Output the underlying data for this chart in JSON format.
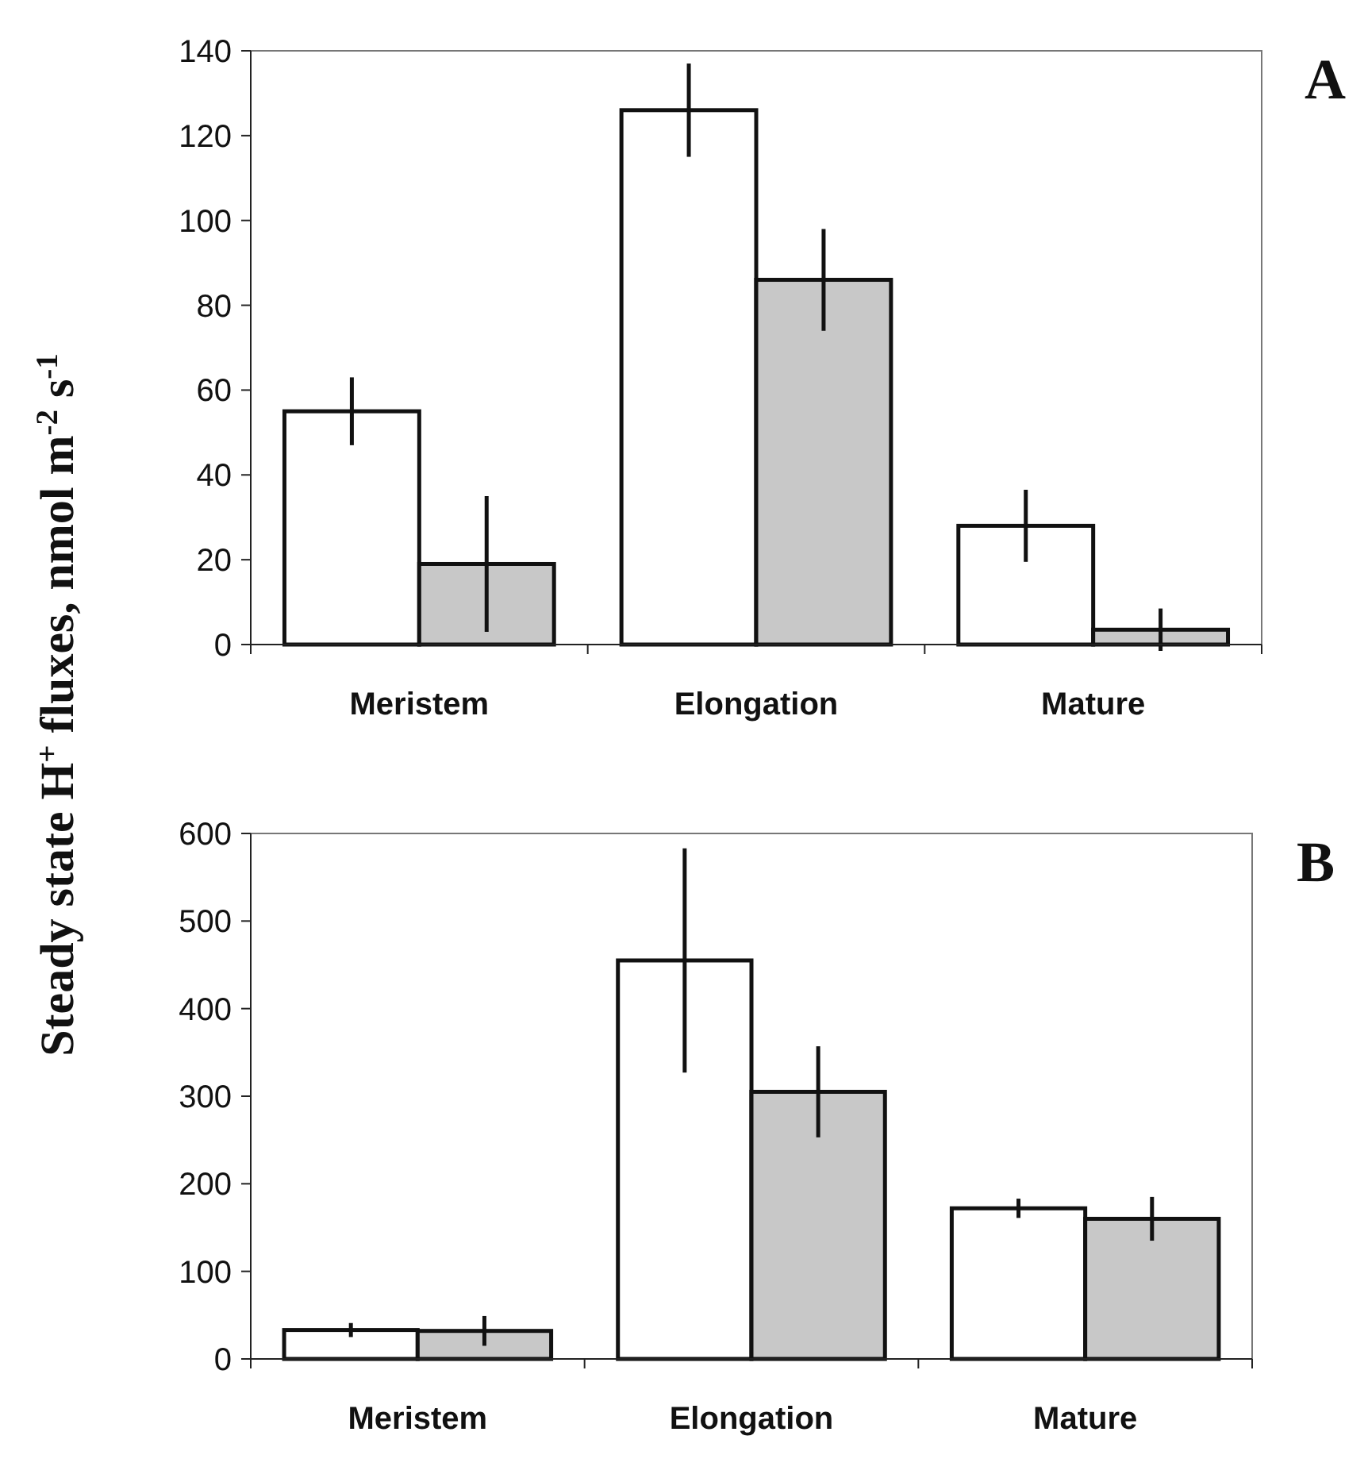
{
  "chart_data": [
    {
      "type": "bar",
      "annotations": [
        "A"
      ],
      "ylabel": "Steady state H$^{+}$ fluxes, nmol m$^{-2}$ s$^{-1}$",
      "categories": [
        "Meristem",
        "Elongation",
        "Mature"
      ],
      "ylim": [
        0,
        140
      ],
      "yticks": [
        0,
        20,
        40,
        60,
        80,
        100,
        120,
        140
      ],
      "grid": false,
      "series": [
        {
          "color": "#ffffff",
          "values": [
            55,
            126,
            28
          ],
          "errors": [
            8,
            11,
            8.5
          ]
        },
        {
          "color": "#c8c8c8",
          "values": [
            19,
            86,
            3.5
          ],
          "errors": [
            16,
            12,
            5
          ]
        }
      ]
    },
    {
      "type": "bar",
      "annotations": [
        "B"
      ],
      "categories": [
        "Meristem",
        "Elongation",
        "Mature"
      ],
      "ylim": [
        0,
        600
      ],
      "yticks": [
        0,
        100,
        200,
        300,
        400,
        500,
        600
      ],
      "grid": false,
      "series": [
        {
          "color": "#ffffff",
          "values": [
            33,
            455,
            172
          ],
          "errors": [
            8,
            128,
            11
          ]
        },
        {
          "color": "#c8c8c8",
          "values": [
            32,
            305,
            160
          ],
          "errors": [
            17,
            52,
            25
          ]
        }
      ]
    }
  ]
}
